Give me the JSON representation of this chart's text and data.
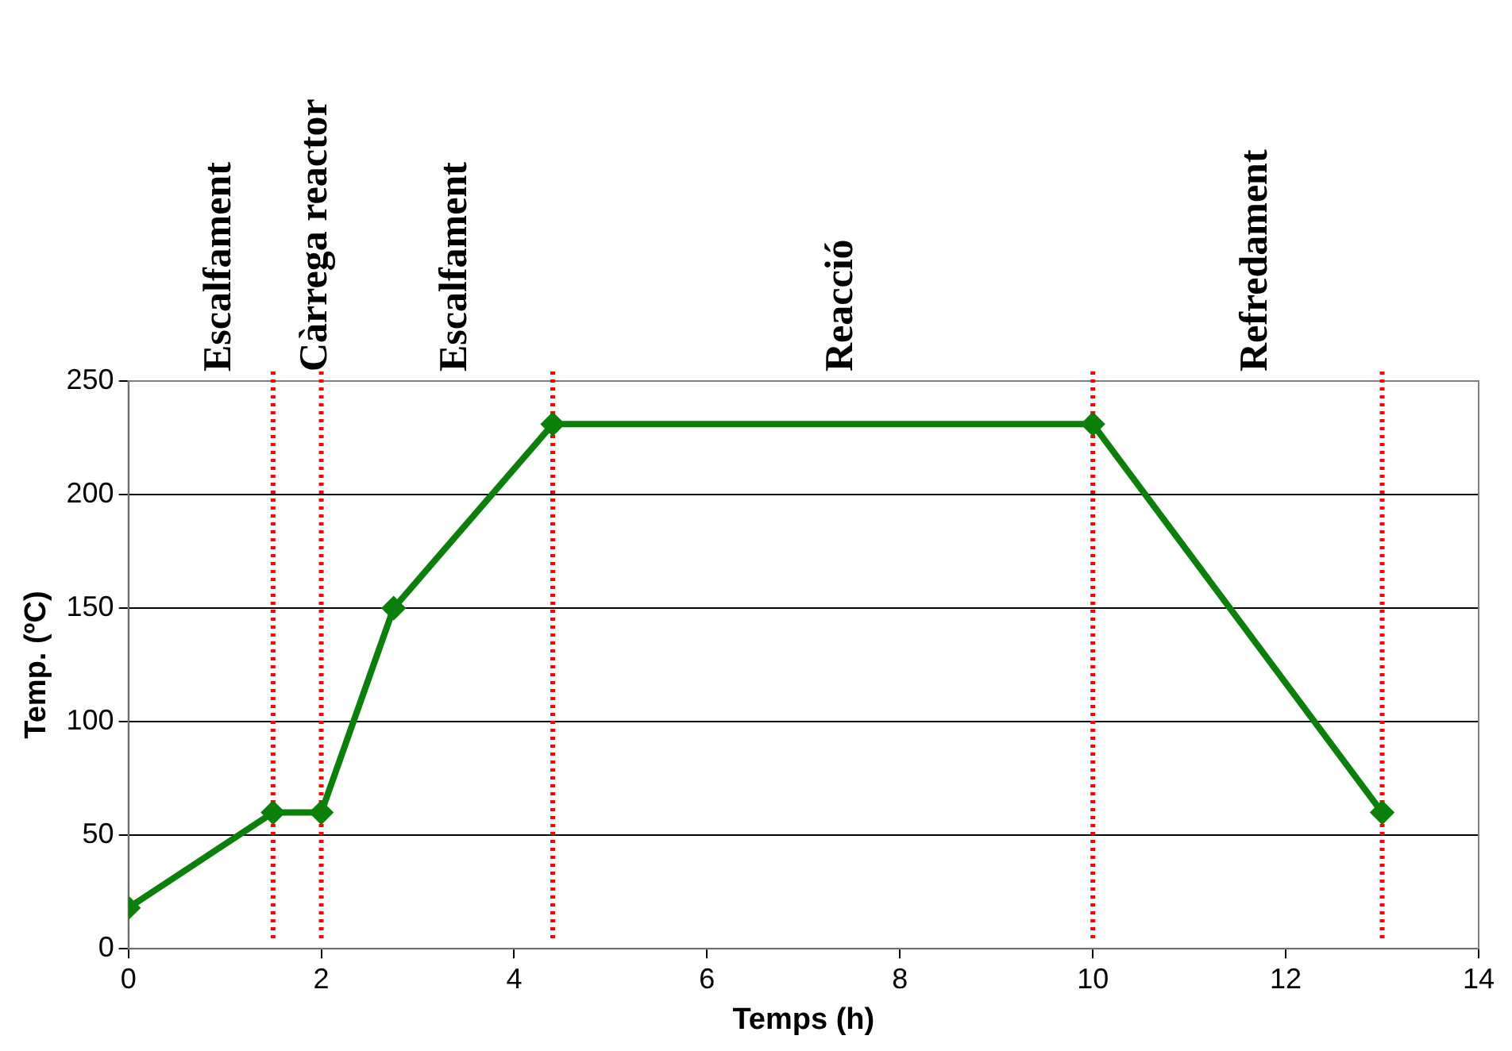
{
  "chart_data": {
    "type": "line",
    "xlabel": "Temps (h)",
    "ylabel": "Temp. (ºC)",
    "x": [
      0,
      1.5,
      2,
      2.75,
      4.4,
      10,
      13
    ],
    "series": [
      {
        "color": "#0a800a",
        "values": [
          18,
          60,
          60,
          150,
          231,
          231,
          60
        ]
      }
    ],
    "xlim": [
      0,
      14
    ],
    "xticks": [
      0,
      2,
      4,
      6,
      8,
      10,
      12,
      14
    ],
    "ylim": [
      0,
      250
    ],
    "yticks": [
      0,
      50,
      100,
      150,
      200,
      250
    ],
    "grid": "y",
    "legend": false,
    "marker": "diamond",
    "line_style": "solid",
    "ref_lines": [
      {
        "axis": "x",
        "value": 1.5,
        "color": "#ff0000",
        "line_style": "dotted"
      },
      {
        "axis": "x",
        "value": 2,
        "color": "#ff0000",
        "line_style": "dotted"
      },
      {
        "axis": "x",
        "value": 4.4,
        "color": "#ff0000",
        "line_style": "dotted"
      },
      {
        "axis": "x",
        "value": 10,
        "color": "#ff0000",
        "line_style": "dotted"
      },
      {
        "axis": "x",
        "value": 13,
        "color": "#ff0000",
        "line_style": "dotted"
      }
    ],
    "annotations": [
      "Escalfament",
      "Càrrega reactor",
      "Escalfament",
      "Reacció",
      "Refredament"
    ]
  }
}
